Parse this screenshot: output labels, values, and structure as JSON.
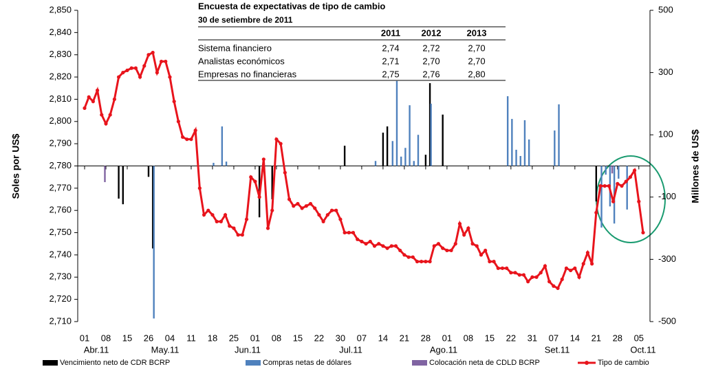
{
  "chart_data": {
    "type": "combo",
    "y_label": "Soles por US$",
    "y2_label": "Millones de US$",
    "ylim": [
      2710,
      2850
    ],
    "yticks": [
      {
        "value": 2710,
        "label": "2,710"
      },
      {
        "value": 2720,
        "label": "2,720"
      },
      {
        "value": 2730,
        "label": "2,730"
      },
      {
        "value": 2740,
        "label": "2,740"
      },
      {
        "value": 2750,
        "label": "2,750"
      },
      {
        "value": 2760,
        "label": "2,760"
      },
      {
        "value": 2770,
        "label": "2,770"
      },
      {
        "value": 2780,
        "label": "2,780"
      },
      {
        "value": 2790,
        "label": "2,790"
      },
      {
        "value": 2800,
        "label": "2,800"
      },
      {
        "value": 2810,
        "label": "2,810"
      },
      {
        "value": 2820,
        "label": "2,820"
      },
      {
        "value": 2830,
        "label": "2,830"
      },
      {
        "value": 2840,
        "label": "2,840"
      },
      {
        "value": 2850,
        "label": "2,850"
      }
    ],
    "y2lim": [
      -500,
      500
    ],
    "y2ticks": [
      -500,
      -300,
      -100,
      100,
      300,
      500
    ],
    "tick_labels": [
      "01",
      "08",
      "15",
      "26",
      "04",
      "11",
      "18",
      "25",
      "01",
      "08",
      "15",
      "22",
      "30",
      "07",
      "14",
      "21",
      "28",
      "01",
      "08",
      "15",
      "22",
      "31",
      "07",
      "14",
      "21",
      "28",
      "05"
    ],
    "month_labels": [
      "Abr.11",
      "May.11",
      "Jun.11",
      "Jul.11",
      "Ago.11",
      "Set.11",
      "Oct.11"
    ],
    "series": [
      {
        "name": "Vencimiento neto de CDR BCRP",
        "type": "bar",
        "axis": "y2",
        "color": "#000000",
        "values": [
          null,
          null,
          null,
          null,
          null,
          null,
          null,
          null,
          -105,
          -123,
          null,
          null,
          null,
          null,
          null,
          -35,
          -265,
          null,
          null,
          null,
          null,
          null,
          null,
          null,
          null,
          null,
          null,
          null,
          null,
          null,
          null,
          null,
          null,
          null,
          null,
          null,
          null,
          null,
          null,
          null,
          null,
          -165,
          null,
          null,
          -107,
          null,
          null,
          null,
          null,
          null,
          null,
          null,
          null,
          null,
          null,
          null,
          null,
          null,
          null,
          null,
          null,
          65,
          null,
          null,
          null,
          null,
          null,
          null,
          null,
          null,
          107,
          127,
          null,
          null,
          null,
          null,
          null,
          null,
          null,
          null,
          36,
          266,
          null,
          null,
          165,
          null,
          null,
          null,
          null,
          null,
          null,
          null,
          null,
          null,
          null,
          null,
          null,
          null,
          null,
          null,
          null,
          null,
          null,
          null,
          null,
          null,
          null,
          null,
          null,
          null,
          null,
          null,
          null,
          null,
          null,
          null,
          null,
          null,
          null,
          null,
          -114,
          null,
          null,
          null,
          null,
          null,
          null,
          null,
          null,
          null,
          null,
          null
        ]
      },
      {
        "name": "Compras netas de dólares",
        "type": "bar",
        "axis": "y2",
        "color": "#4f81bd",
        "values": [
          null,
          null,
          null,
          null,
          null,
          null,
          null,
          null,
          null,
          null,
          null,
          null,
          null,
          null,
          null,
          null,
          -490,
          null,
          null,
          null,
          null,
          null,
          null,
          null,
          null,
          null,
          null,
          null,
          null,
          null,
          10,
          null,
          127,
          14,
          null,
          null,
          null,
          null,
          null,
          null,
          null,
          null,
          null,
          null,
          null,
          null,
          null,
          null,
          null,
          null,
          null,
          null,
          null,
          null,
          null,
          null,
          null,
          null,
          null,
          null,
          null,
          null,
          null,
          null,
          null,
          null,
          null,
          null,
          16,
          null,
          null,
          null,
          80,
          273,
          30,
          58,
          195,
          16,
          100,
          null,
          null,
          200,
          null,
          null,
          null,
          null,
          null,
          null,
          null,
          null,
          null,
          null,
          null,
          null,
          null,
          null,
          null,
          null,
          null,
          224,
          151,
          52,
          32,
          147,
          85,
          null,
          null,
          null,
          null,
          null,
          114,
          198,
          null,
          null,
          null,
          null,
          null,
          null,
          null,
          null,
          null,
          -198,
          -28,
          -130,
          -185,
          -41,
          null,
          -140,
          null,
          null,
          null,
          null
        ]
      },
      {
        "name": "Colocación neta de CDLD BCRP",
        "type": "bar",
        "axis": "y2",
        "color": "#8064a2",
        "values": [
          null,
          null,
          null,
          null,
          null,
          -52,
          null,
          null,
          null,
          null,
          null,
          null,
          null,
          null,
          null,
          null,
          null,
          null,
          null,
          null,
          null,
          null,
          null,
          null,
          null,
          null,
          null,
          null,
          null,
          null,
          null,
          null,
          null,
          null,
          null,
          null,
          null,
          null,
          null,
          null,
          null,
          null,
          null,
          null,
          null,
          null,
          null,
          null,
          null,
          null,
          null,
          null,
          null,
          null,
          null,
          null,
          null,
          null,
          null,
          null,
          null,
          null,
          null,
          null,
          null,
          null,
          null,
          null,
          null,
          null,
          null,
          null,
          null,
          null,
          null,
          null,
          null,
          null,
          null,
          null,
          null,
          null,
          null,
          null,
          null,
          null,
          null,
          null,
          null,
          null,
          null,
          null,
          null,
          null,
          null,
          null,
          null,
          null,
          null,
          null,
          null,
          null,
          null,
          null,
          null,
          null,
          null,
          null,
          null,
          null,
          null,
          null,
          null,
          null,
          null,
          null,
          null,
          null,
          null,
          null,
          null,
          null,
          null,
          null,
          -24,
          null,
          null,
          null,
          null,
          null,
          null,
          null
        ]
      },
      {
        "name": "Tipo de cambio",
        "type": "line",
        "color": "#e8141c",
        "values": [
          2806,
          2811,
          2809,
          2814,
          2803,
          2799,
          2803,
          2810,
          2820,
          2822,
          2823,
          2824,
          2824,
          2820,
          2825,
          2830,
          2831,
          2822,
          2827,
          2827,
          2820,
          2809,
          2800,
          2793,
          2792,
          2792,
          2796,
          2770,
          2758,
          2760,
          2758,
          2755,
          2755,
          2758,
          2753,
          2752,
          2749,
          2749,
          2756,
          2775,
          2773,
          2766,
          2783,
          2752,
          2760,
          2792,
          2790,
          2777,
          2765,
          2762,
          2763,
          2761,
          2762,
          2763,
          2761,
          2758,
          2755,
          2758,
          2760,
          2760,
          2756,
          2750,
          2750,
          2750,
          2747,
          2746,
          2745,
          2746,
          2744,
          2745,
          2744,
          2743,
          2744,
          2744,
          2742,
          2740,
          2739,
          2739,
          2737,
          2737,
          2737,
          2737,
          2744,
          2745,
          2743,
          2742,
          2742,
          2745,
          2754,
          2749,
          2752,
          2745,
          2744,
          2740,
          2742,
          2737,
          2737,
          2734,
          2734,
          2734,
          2732,
          2732,
          2731,
          2731,
          2728,
          2730,
          2730,
          2732,
          2735,
          2728,
          2726,
          2725,
          2729,
          2734,
          2733,
          2734,
          2730,
          2736,
          2741,
          2736,
          2759,
          2771,
          2771,
          2771,
          2764,
          2772,
          2771,
          2773,
          2775,
          2778,
          2764,
          2750
        ]
      }
    ],
    "table": {
      "title": "Encuesta de expectativas de tipo de cambio",
      "subtitle": "30 de setiembre de 2011",
      "columns": [
        "2011",
        "2012",
        "2013"
      ],
      "rows": [
        {
          "label": "Sistema financiero",
          "values": [
            "2,74",
            "2,72",
            "2,70"
          ]
        },
        {
          "label": "Analistas económicos",
          "values": [
            "2,71",
            "2,70",
            "2,70"
          ]
        },
        {
          "label": "Empresas no financieras",
          "values": [
            "2,75",
            "2,76",
            "2,80"
          ]
        }
      ]
    }
  }
}
